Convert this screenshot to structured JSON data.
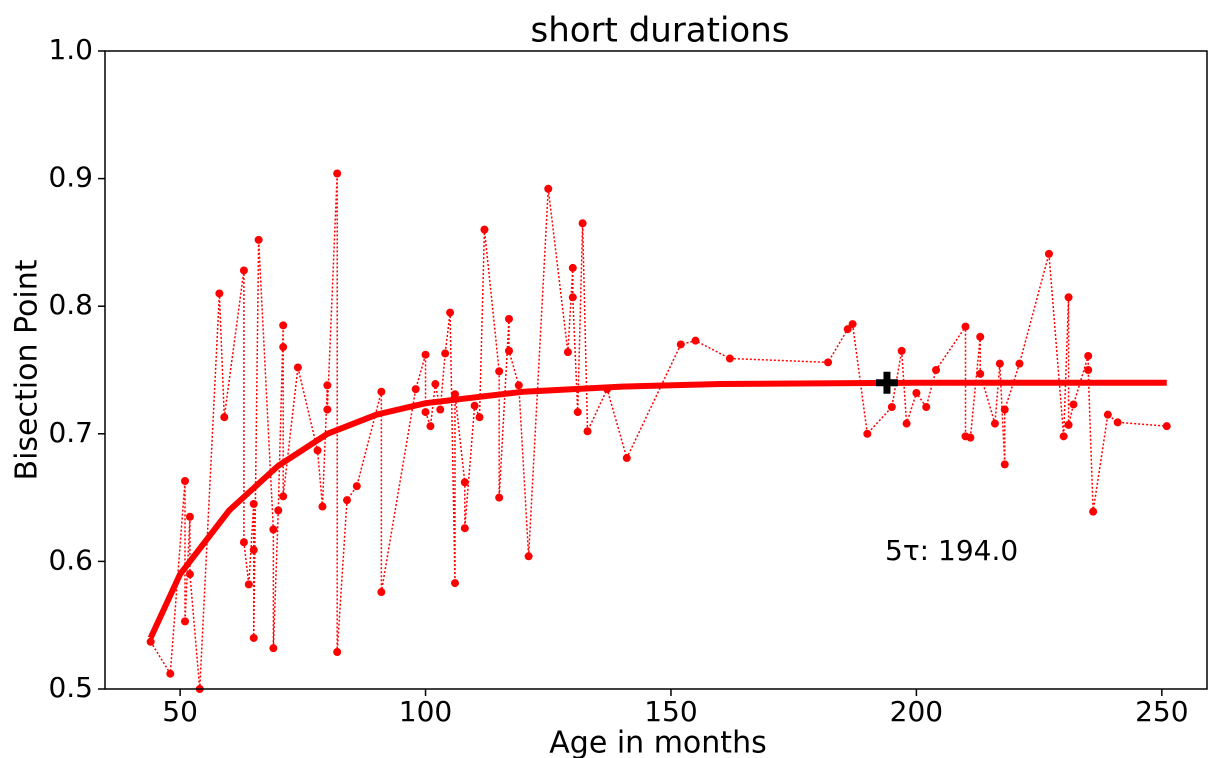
{
  "chart_data": {
    "type": "line",
    "title": "short durations",
    "xlabel": "Age in months",
    "ylabel": "Bisection Point",
    "xlim": [
      34.7,
      259.2
    ],
    "ylim": [
      0.5,
      1.0
    ],
    "xticks": [
      50,
      100,
      150,
      200,
      250
    ],
    "yticks": [
      0.5,
      0.6,
      0.7,
      0.8,
      0.9,
      {
        "value": 1.0,
        "label": "1.0"
      }
    ],
    "series": [
      {
        "color": "#ff0000",
        "style": "dotted-markers",
        "x": [
          44,
          48,
          51,
          51,
          52,
          52,
          54,
          58,
          59,
          63,
          63,
          64,
          65,
          65,
          65,
          66,
          69,
          69,
          70,
          71,
          71,
          71,
          74,
          78,
          79,
          80,
          80,
          82,
          82,
          84,
          86,
          91,
          91,
          98,
          100,
          100,
          101,
          102,
          103,
          104,
          105,
          106,
          106,
          108,
          108,
          110,
          111,
          112,
          115,
          115,
          117,
          117,
          119,
          121,
          125,
          129,
          130,
          130,
          131,
          132,
          133,
          137,
          141,
          152,
          155,
          162,
          182,
          186,
          187,
          190,
          195,
          197,
          198,
          200,
          202,
          204,
          210,
          210,
          211,
          213,
          213,
          216,
          217,
          218,
          218,
          221,
          227,
          230,
          231,
          231,
          232,
          235,
          235,
          236,
          239,
          241,
          251
        ],
        "values": [
          0.537,
          0.512,
          0.663,
          0.553,
          0.635,
          0.59,
          0.5,
          0.81,
          0.713,
          0.828,
          0.615,
          0.582,
          0.645,
          0.609,
          0.54,
          0.852,
          0.625,
          0.532,
          0.64,
          0.785,
          0.768,
          0.651,
          0.752,
          0.687,
          0.643,
          0.738,
          0.719,
          0.904,
          0.529,
          0.648,
          0.659,
          0.733,
          0.576,
          0.735,
          0.762,
          0.717,
          0.706,
          0.739,
          0.719,
          0.763,
          0.795,
          0.583,
          0.731,
          0.662,
          0.626,
          0.722,
          0.713,
          0.86,
          0.749,
          0.65,
          0.79,
          0.765,
          0.738,
          0.604,
          0.892,
          0.764,
          0.83,
          0.807,
          0.717,
          0.865,
          0.702,
          0.735,
          0.681,
          0.77,
          0.773,
          0.759,
          0.756,
          0.782,
          0.786,
          0.7,
          0.721,
          0.765,
          0.708,
          0.732,
          0.721,
          0.75,
          0.784,
          0.698,
          0.697,
          0.776,
          0.747,
          0.708,
          0.755,
          0.676,
          0.719,
          0.755,
          0.841,
          0.698,
          0.807,
          0.707,
          0.723,
          0.761,
          0.75,
          0.639,
          0.715,
          0.709,
          0.706
        ]
      },
      {
        "color": "#ff0000",
        "style": "thick",
        "x": [
          44,
          50,
          60,
          70,
          80,
          90,
          100,
          120,
          140,
          160,
          200,
          251
        ],
        "values": [
          0.54,
          0.59,
          0.64,
          0.675,
          0.7,
          0.715,
          0.724,
          0.733,
          0.737,
          0.739,
          0.74,
          0.74
        ]
      }
    ],
    "marker": {
      "x": 194,
      "y": 0.74,
      "color": "#000000"
    },
    "annotation": "5τ: 194.0"
  }
}
